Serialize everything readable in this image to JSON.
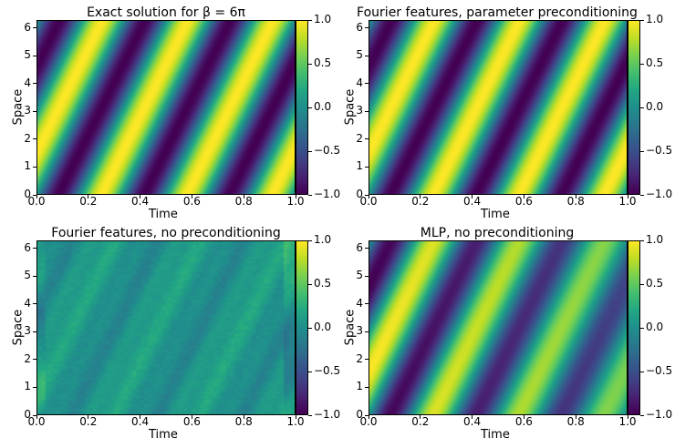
{
  "colormap": "viridis",
  "chart_data": [
    {
      "type": "heatmap",
      "title": "Exact solution for β = 6π",
      "xlabel": "Time",
      "ylabel": "Space",
      "xlim": [
        0.0,
        1.0
      ],
      "ylim": [
        0,
        6.283
      ],
      "xticks": [
        "0.0",
        "0.2",
        "0.4",
        "0.6",
        "0.8",
        "1.0"
      ],
      "yticks": [
        "0",
        "1",
        "2",
        "3",
        "4",
        "5",
        "6"
      ],
      "colorbar": {
        "range": [
          -1.0,
          1.0
        ],
        "ticks": [
          "1.0",
          "0.5",
          "0.0",
          "−0.5",
          "−1.0"
        ]
      },
      "field": {
        "formula": "sin(x - 6*pi*t)",
        "amplitude": 1.0,
        "noise": 0.0
      }
    },
    {
      "type": "heatmap",
      "title": "Fourier features, parameter preconditioning",
      "xlabel": "Time",
      "ylabel": "Space",
      "xlim": [
        0.0,
        1.0
      ],
      "ylim": [
        0,
        6.283
      ],
      "xticks": [
        "0.0",
        "0.2",
        "0.4",
        "0.6",
        "0.8",
        "1.0"
      ],
      "yticks": [
        "0",
        "1",
        "2",
        "3",
        "4",
        "5",
        "6"
      ],
      "colorbar": {
        "range": [
          -1.0,
          1.0
        ],
        "ticks": [
          "1.0",
          "0.5",
          "0.0",
          "−0.5",
          "−1.0"
        ]
      },
      "field": {
        "formula": "sin(x - 6*pi*t)",
        "amplitude": 1.0,
        "noise": 0.0
      }
    },
    {
      "type": "heatmap",
      "title": "Fourier features, no preconditioning",
      "xlabel": "Time",
      "ylabel": "Space",
      "xlim": [
        0.0,
        1.0
      ],
      "ylim": [
        0,
        6.283
      ],
      "xticks": [
        "0.0",
        "0.2",
        "0.4",
        "0.6",
        "0.8",
        "1.0"
      ],
      "yticks": [
        "0",
        "1",
        "2",
        "3",
        "4",
        "5",
        "6"
      ],
      "colorbar": {
        "range": [
          -1.0,
          1.0
        ],
        "ticks": [
          "1.0",
          "0.5",
          "0.0",
          "−0.5",
          "−1.0"
        ]
      },
      "field": {
        "formula": "noisy near-zero field with faint diagonal streaks",
        "amplitude": 0.15,
        "noise": 0.12
      }
    },
    {
      "type": "heatmap",
      "title": "MLP, no preconditioning",
      "xlabel": "Time",
      "ylabel": "Space",
      "xlim": [
        0.0,
        1.0
      ],
      "ylim": [
        0,
        6.283
      ],
      "xticks": [
        "0.0",
        "0.2",
        "0.4",
        "0.6",
        "0.8",
        "1.0"
      ],
      "yticks": [
        "0",
        "1",
        "2",
        "3",
        "4",
        "5",
        "6"
      ],
      "colorbar": {
        "range": [
          -1.0,
          1.0
        ],
        "ticks": [
          "1.0",
          "0.5",
          "0.0",
          "−0.5",
          "−1.0"
        ]
      },
      "field": {
        "formula": "damped sin(x - 6*pi*t), amplitude decaying from 1.0 to 0.6 over time",
        "amplitude": 1.0,
        "noise": 0.0
      }
    }
  ]
}
